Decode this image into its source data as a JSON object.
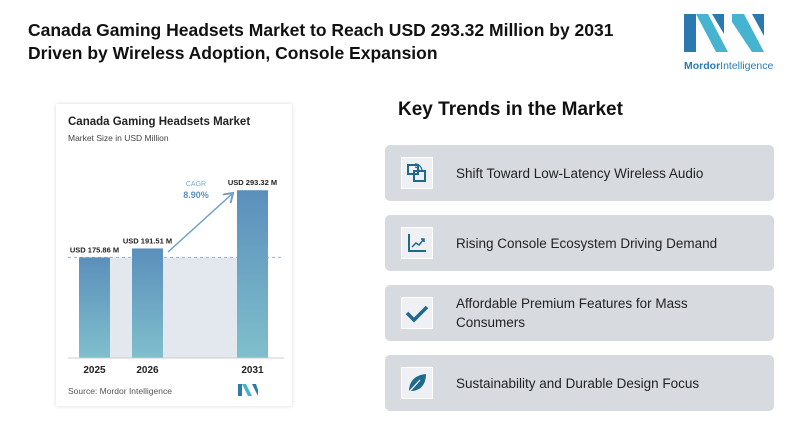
{
  "header": {
    "title": "Canada Gaming Headsets Market to Reach USD 293.32 Million by 2031 Driven by Wireless Adoption, Console Expansion",
    "logo_text_bold": "Mordor",
    "logo_text": "Intelligence"
  },
  "chart_data": {
    "type": "bar",
    "title": "Canada Gaming Headsets Market",
    "subtitle": "Market Size in USD Million",
    "categories": [
      "2025",
      "2026",
      "2031"
    ],
    "values": [
      175.86,
      191.51,
      293.32
    ],
    "data_labels": [
      "USD 175.86 M",
      "USD 191.51 M",
      "USD 293.32 M"
    ],
    "cagr_label": "CAGR",
    "cagr_value": "8.90%",
    "source": "Source: Mordor Intelligence",
    "colors": {
      "bar_top": "#5b8fbb",
      "bar_bottom": "#7fbfcc",
      "shade": "#e3e8ef"
    }
  },
  "trends": {
    "title": "Key Trends in the Market",
    "items": [
      {
        "label": "Shift Toward Low-Latency Wireless Audio",
        "icon": "wireless-device-icon"
      },
      {
        "label": "Rising Console Ecosystem Driving Demand",
        "icon": "growth-chart-icon"
      },
      {
        "label": "Affordable Premium Features for Mass Consumers",
        "icon": "checkmark-icon"
      },
      {
        "label": "Sustainability and Durable Design Focus",
        "icon": "leaf-icon"
      }
    ]
  }
}
